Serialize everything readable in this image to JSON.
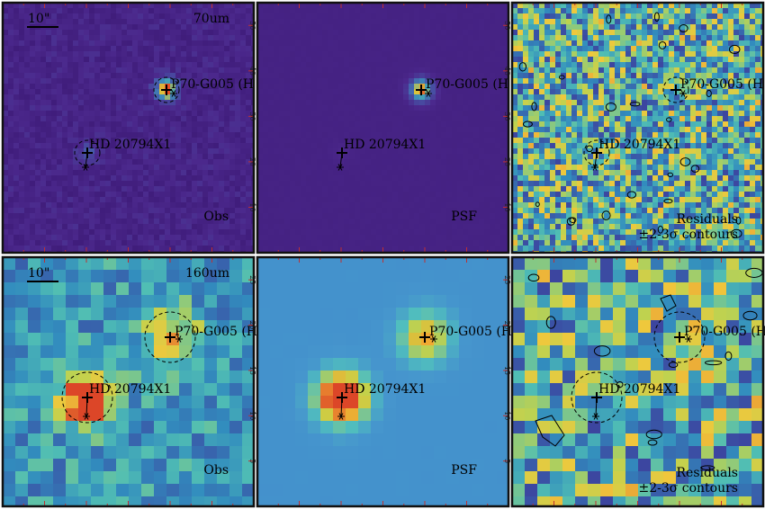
{
  "figure": {
    "rows": [
      {
        "band_label": "70um",
        "scale_label": "10\"",
        "panels": [
          {
            "kind": "obs",
            "label": "Obs",
            "sublabel": "",
            "colormap": "dark-purple",
            "y_ticks": [
              "10",
              "20",
              "30",
              "40",
              "50"
            ]
          },
          {
            "kind": "psf",
            "label": "PSF",
            "sublabel": "",
            "colormap": "dark-purple",
            "y_ticks": [
              "10",
              "20",
              "30",
              "40",
              "50"
            ]
          },
          {
            "kind": "residual",
            "label": "Residuals",
            "sublabel": "±2-3σ contours",
            "colormap": "viridis-like",
            "y_ticks": []
          }
        ]
      },
      {
        "band_label": "160um",
        "scale_label": "10\"",
        "panels": [
          {
            "kind": "obs",
            "label": "Obs",
            "sublabel": "",
            "colormap": "viridis-like",
            "y_ticks": [
              "5",
              "10",
              "15",
              "20",
              "25"
            ]
          },
          {
            "kind": "psf",
            "label": "PSF",
            "sublabel": "",
            "colormap": "blue-yellow",
            "y_ticks": [
              "5",
              "10",
              "15",
              "20",
              "25"
            ]
          },
          {
            "kind": "residual",
            "label": "Residuals",
            "sublabel": "±2-3σ contours",
            "colormap": "viridis-like",
            "y_ticks": []
          }
        ]
      }
    ],
    "sources": [
      {
        "name": "P70-G005 (H",
        "role": "secondary"
      },
      {
        "name": "HD 20794X1",
        "role": "primary"
      }
    ],
    "colors": {
      "panel_border": "#111111",
      "source_peak": "#e06030",
      "marker": "#000000"
    }
  }
}
